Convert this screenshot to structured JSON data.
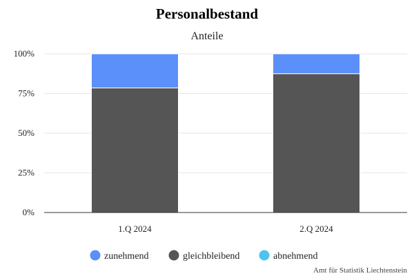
{
  "chart_data": {
    "type": "bar",
    "stacked": true,
    "title": "Personalbestand",
    "subtitle": "Anteile",
    "categories": [
      "1.Q 2024",
      "2.Q 2024"
    ],
    "series": [
      {
        "name": "abnehmend",
        "color": "#4dc3f0",
        "values": [
          0,
          0
        ]
      },
      {
        "name": "gleichbleibend",
        "color": "#555555",
        "values": [
          78.5,
          87.5
        ]
      },
      {
        "name": "zunehmend",
        "color": "#5b8ff9",
        "values": [
          21.5,
          12.5
        ]
      }
    ],
    "legend_order": [
      "zunehmend",
      "gleichbleibend",
      "abnehmend"
    ],
    "ylim": [
      0,
      100
    ],
    "yticks": [
      0,
      25,
      50,
      75,
      100
    ],
    "ytick_labels": [
      "0%",
      "25%",
      "50%",
      "75%",
      "100%"
    ],
    "grid": true,
    "legend_position": "bottom",
    "credit": "Amt für Statistik Liechtenstein"
  }
}
